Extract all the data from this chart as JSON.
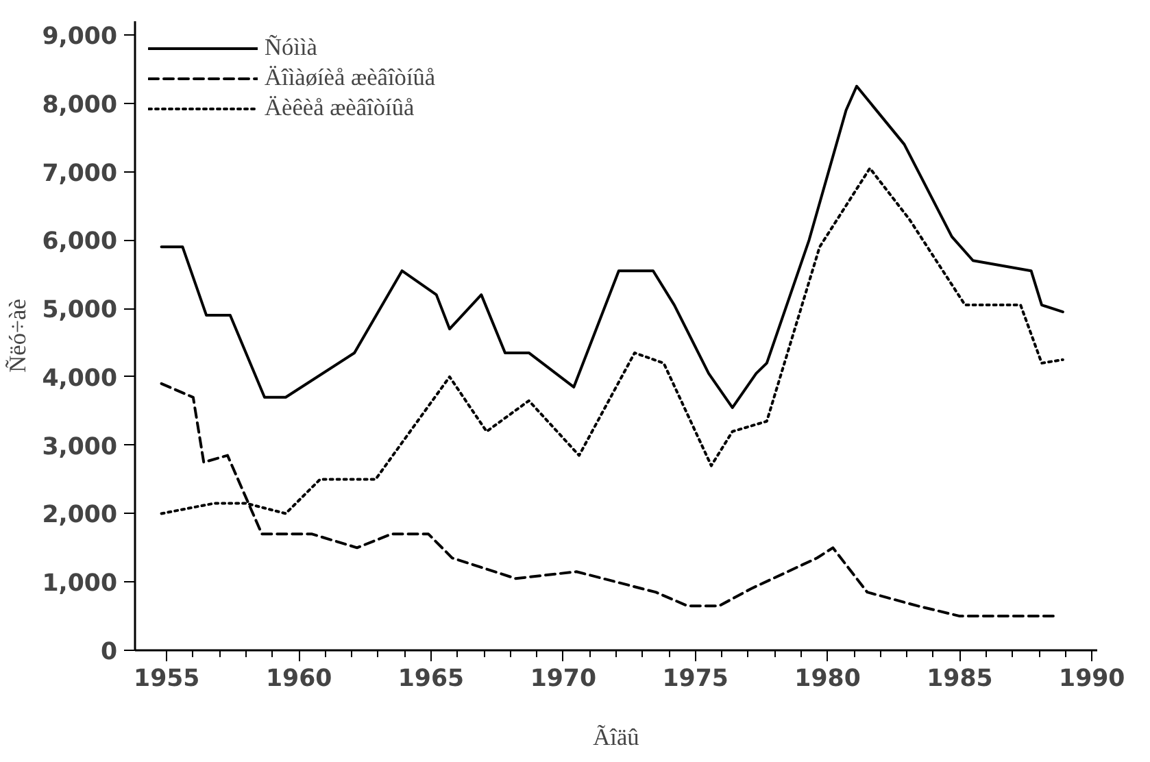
{
  "chart_data": {
    "type": "line",
    "xlabel": "Ãîäû",
    "ylabel": "Ñëó÷àè",
    "xlim": [
      1953.8,
      1990.2
    ],
    "ylim": [
      0,
      9200
    ],
    "xticks": [
      1955,
      1960,
      1965,
      1970,
      1975,
      1980,
      1985,
      1990
    ],
    "yticks": [
      {
        "value": 0,
        "label": "0"
      },
      {
        "value": 1000,
        "label": "1,000"
      },
      {
        "value": 2000,
        "label": "2,000"
      },
      {
        "value": 3000,
        "label": "3,000"
      },
      {
        "value": 4000,
        "label": "4,000"
      },
      {
        "value": 5000,
        "label": "5,000"
      },
      {
        "value": 6000,
        "label": "6,000"
      },
      {
        "value": 7000,
        "label": "7,000"
      },
      {
        "value": 8000,
        "label": "8,000"
      },
      {
        "value": 9000,
        "label": "9,000"
      }
    ],
    "grid": false,
    "legend": "top left",
    "marker": "none",
    "series": [
      {
        "name": "Ñóììà",
        "color": "#000000",
        "line_style": "solid",
        "x": [
          1954.8,
          1955.6,
          1956.5,
          1957.4,
          1958.7,
          1959.5,
          1962.1,
          1963.9,
          1965.2,
          1965.7,
          1966.9,
          1967.8,
          1968.7,
          1970.4,
          1972.1,
          1973.4,
          1974.2,
          1975.5,
          1976.4,
          1977.3,
          1977.7,
          1979.3,
          1980.7,
          1981.1,
          1982.9,
          1984.7,
          1985.5,
          1987.7,
          1988.1,
          1988.9
        ],
        "values": [
          5900,
          5900,
          4900,
          4900,
          3700,
          3700,
          4350,
          5550,
          5200,
          4700,
          5200,
          4350,
          4350,
          3850,
          5550,
          5550,
          5050,
          4050,
          3550,
          4050,
          4200,
          6000,
          7900,
          8250,
          7400,
          6050,
          5700,
          5550,
          5050,
          4950
        ]
      },
      {
        "name": "Äîìàøíèå æèâîòíûå",
        "color": "#000000",
        "line_style": "dashed",
        "x": [
          1954.8,
          1956.0,
          1956.4,
          1957.3,
          1958.6,
          1960.5,
          1962.2,
          1963.5,
          1964.9,
          1965.8,
          1968.2,
          1970.5,
          1973.5,
          1974.7,
          1975.9,
          1977.1,
          1979.6,
          1980.2,
          1981.5,
          1983.4,
          1985.0,
          1988.6
        ],
        "values": [
          3900,
          3700,
          2750,
          2850,
          1700,
          1700,
          1500,
          1700,
          1700,
          1350,
          1050,
          1150,
          850,
          650,
          650,
          900,
          1350,
          1500,
          850,
          650,
          500,
          500
        ]
      },
      {
        "name": "Äèêèå æèâîòíûå",
        "color": "#000000",
        "line_style": "dotted",
        "x": [
          1954.8,
          1956.8,
          1958.0,
          1959.5,
          1960.8,
          1962.9,
          1965.7,
          1967.1,
          1968.7,
          1970.6,
          1972.7,
          1973.8,
          1975.6,
          1976.4,
          1977.7,
          1979.7,
          1981.6,
          1983.1,
          1985.2,
          1987.3,
          1988.1,
          1988.9
        ],
        "values": [
          2000,
          2150,
          2150,
          2000,
          2500,
          2500,
          4000,
          3200,
          3650,
          2850,
          4350,
          4200,
          2700,
          3200,
          3350,
          5900,
          7050,
          6300,
          5050,
          5050,
          4200,
          4250
        ]
      }
    ]
  }
}
